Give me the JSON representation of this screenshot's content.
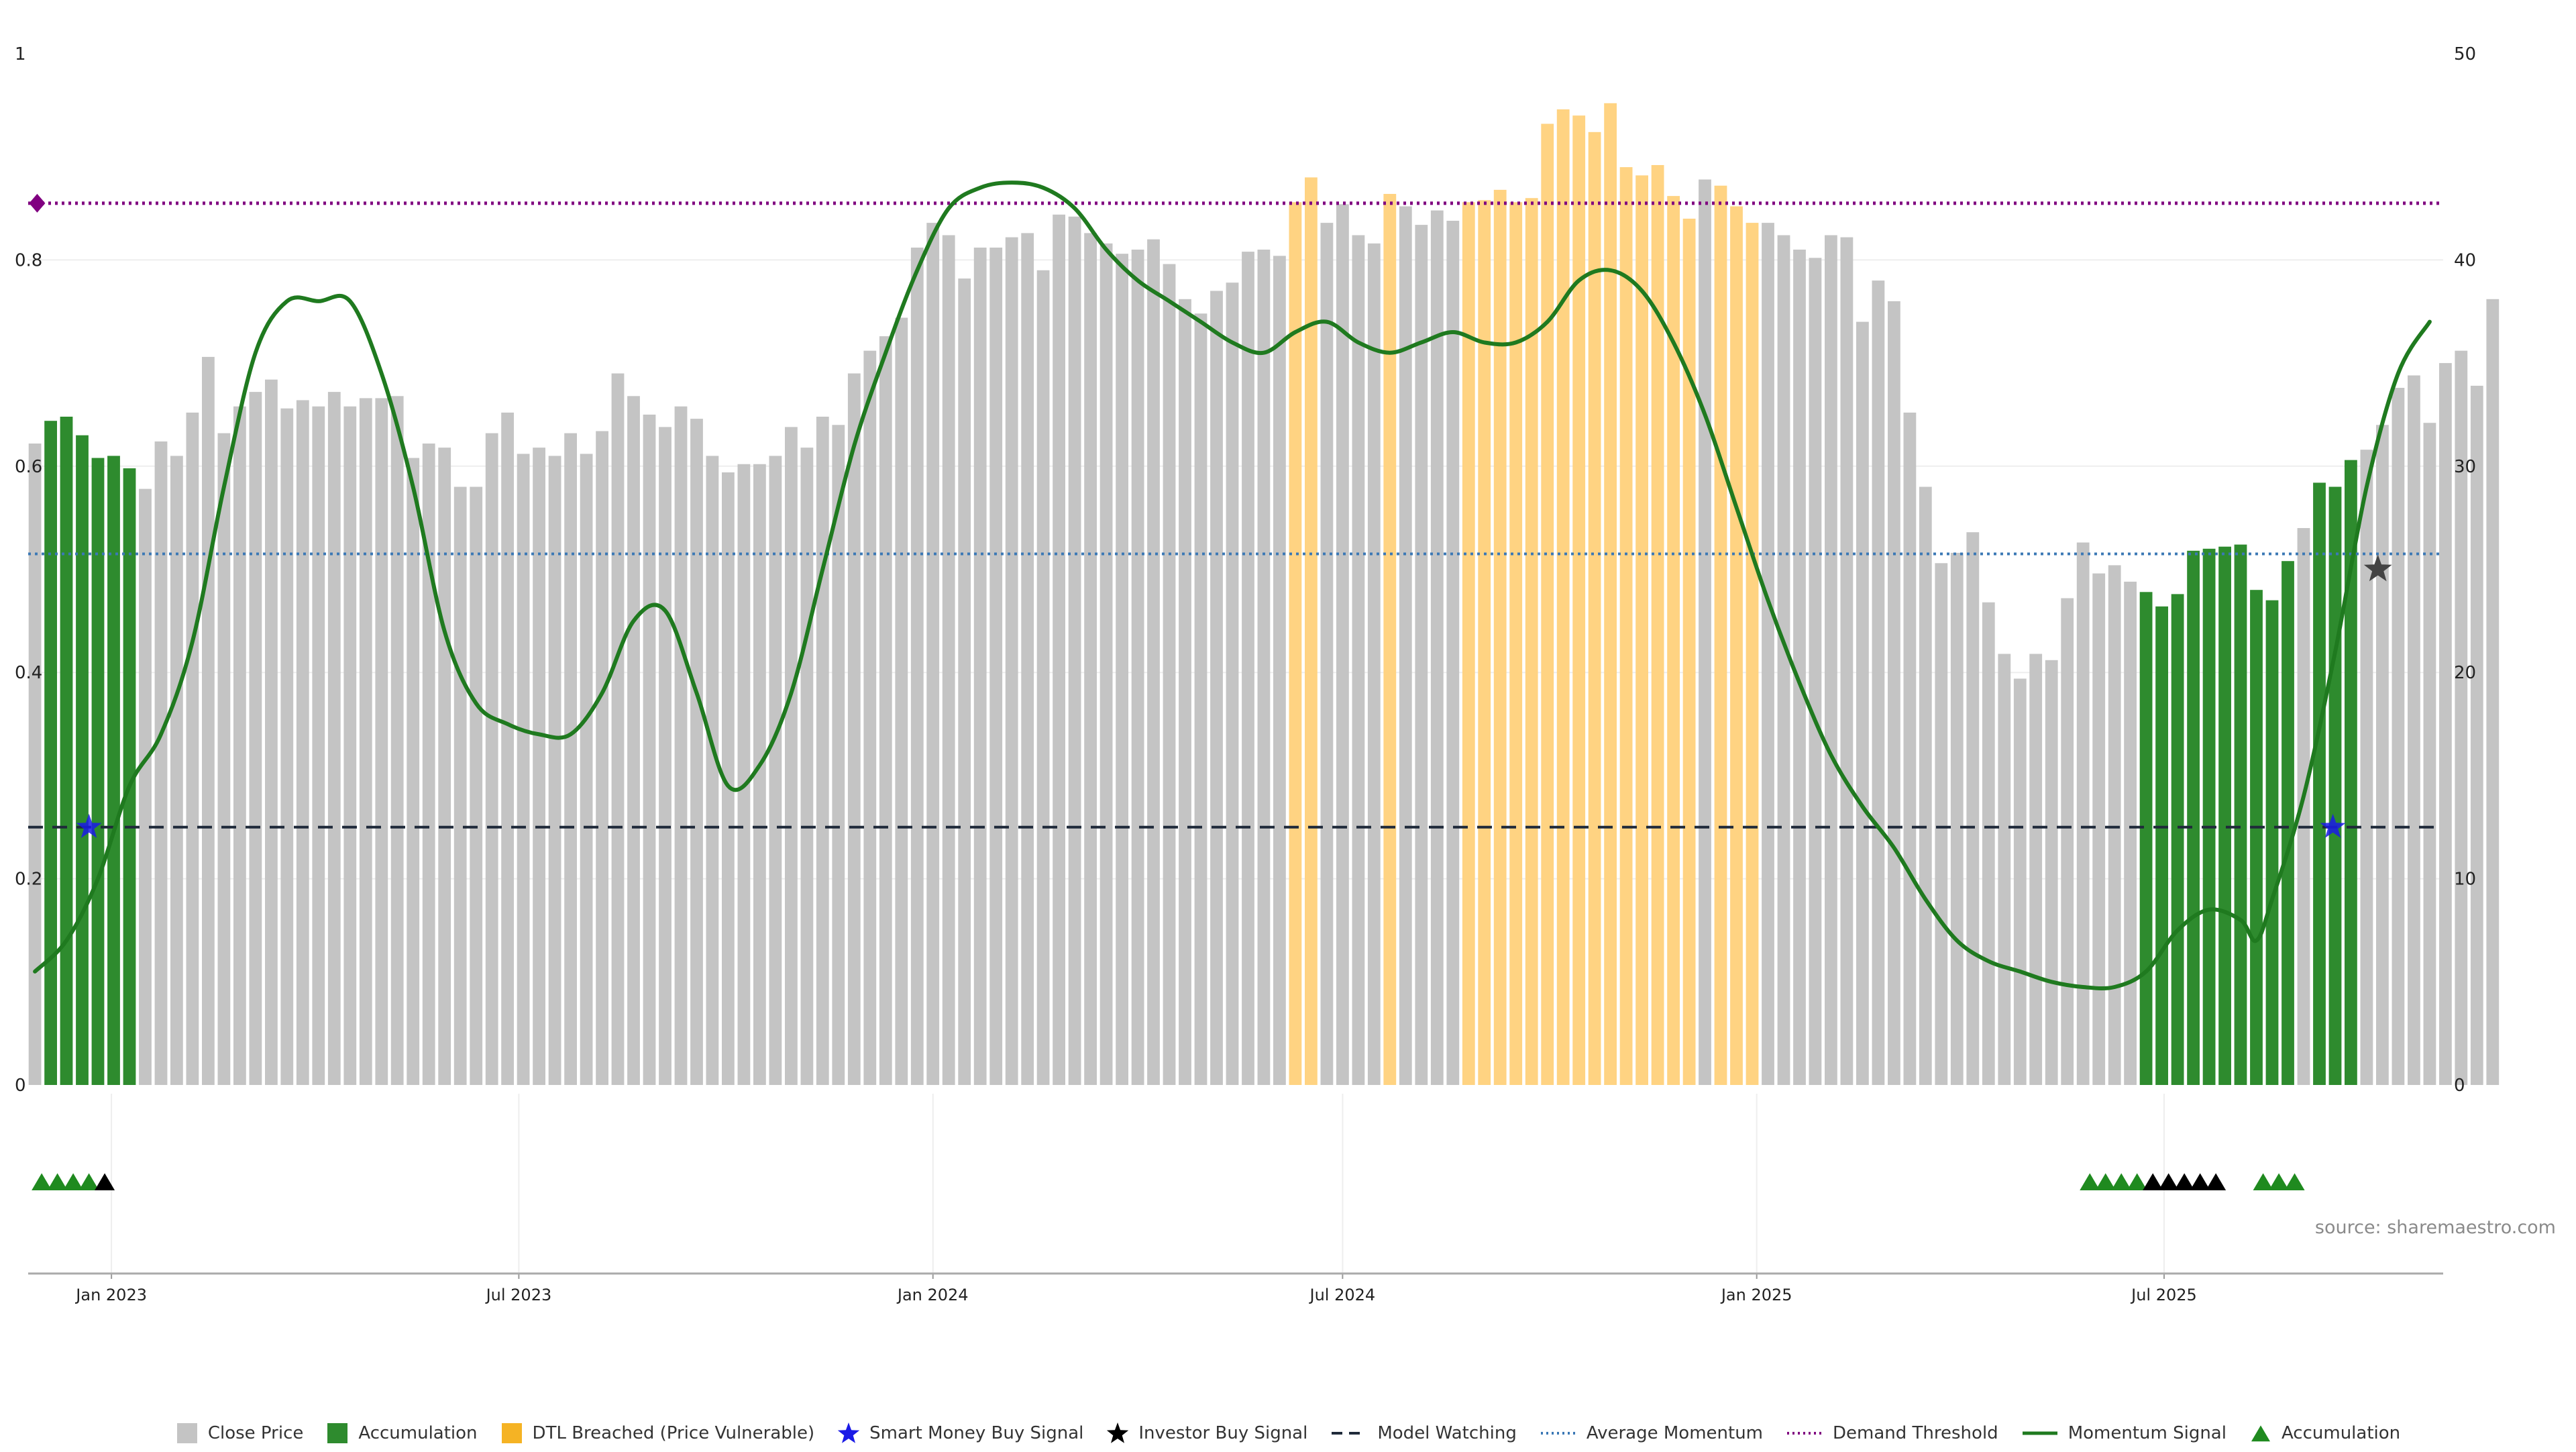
{
  "chart_data": {
    "type": "bar",
    "title": "",
    "xlabel": "",
    "ylabel": "",
    "left_axis": {
      "ylim": [
        0,
        1
      ],
      "ticks": [
        "0",
        "0.2",
        "0.4",
        "0.6",
        "0.8",
        "1"
      ]
    },
    "right_axis": {
      "ylim": [
        0,
        50
      ],
      "ticks": [
        "0",
        "10",
        "20",
        "30",
        "40",
        "50"
      ]
    },
    "x_range": [
      "2022-11-25",
      "2025-11-02"
    ],
    "x_ticks": [
      {
        "date": "2023-01-01",
        "label": "Jan 2023"
      },
      {
        "date": "2023-07-01",
        "label": "Jul 2023"
      },
      {
        "date": "2024-01-01",
        "label": "Jan 2024"
      },
      {
        "date": "2024-07-01",
        "label": "Jul 2024"
      },
      {
        "date": "2025-01-01",
        "label": "Jan 2025"
      },
      {
        "date": "2025-07-01",
        "label": "Jul 2025"
      }
    ],
    "grid": true,
    "bar_start_date": "2022-11-28",
    "bar_interval_days": 7,
    "close_price": [
      31.1,
      32.2,
      32.4,
      31.5,
      30.4,
      30.5,
      29.9,
      28.9,
      31.2,
      30.5,
      32.6,
      35.3,
      31.6,
      32.9,
      33.6,
      34.2,
      32.8,
      33.2,
      32.9,
      33.6,
      32.9,
      33.3,
      33.3,
      33.4,
      30.4,
      31.1,
      30.9,
      29.0,
      29.0,
      31.6,
      32.6,
      30.6,
      30.9,
      30.5,
      31.6,
      30.6,
      31.7,
      34.5,
      33.4,
      32.5,
      31.9,
      32.9,
      32.3,
      30.5,
      29.7,
      30.1,
      30.1,
      30.5,
      31.9,
      30.9,
      32.4,
      32.0,
      34.5,
      35.6,
      36.3,
      37.2,
      40.6,
      41.8,
      41.2,
      39.1,
      40.6,
      40.6,
      41.1,
      41.3,
      39.5,
      42.2,
      42.1,
      41.3,
      40.8,
      40.3,
      40.5,
      41.0,
      39.8,
      38.1,
      37.4,
      38.5,
      38.9,
      40.4,
      40.5,
      40.2,
      42.8,
      44.0,
      41.8,
      42.7,
      41.2,
      40.8,
      43.2,
      42.6,
      41.7,
      42.4,
      41.9,
      42.8,
      42.9,
      43.4,
      42.8,
      43.0,
      46.6,
      47.3,
      47.0,
      46.2,
      47.6,
      44.5,
      44.1,
      44.6,
      43.1,
      42.0,
      43.9,
      43.6,
      42.6,
      41.8,
      41.8,
      41.2,
      40.5,
      40.1,
      41.2,
      41.1,
      37.0,
      39.0,
      38.0,
      32.6,
      29.0,
      25.3,
      25.8,
      26.8,
      23.4,
      20.9,
      19.7,
      20.9,
      20.6,
      23.6,
      26.3,
      24.8,
      25.2,
      24.4,
      23.9,
      23.2,
      23.8,
      25.9,
      26.0,
      26.1,
      26.2,
      24.0,
      23.5,
      25.4,
      27.0,
      29.2,
      29.0,
      30.3,
      30.8,
      32.0,
      33.8,
      34.4,
      32.1,
      35.0,
      35.6,
      33.9,
      38.1
    ],
    "series": [
      {
        "name": "Close Price",
        "kind": "bar",
        "color": "#c4c4c4"
      },
      {
        "name": "Accumulation",
        "kind": "bar",
        "color": "#2e8b2e"
      },
      {
        "name": "DTL Breached (Price Vulnerable)",
        "kind": "bar",
        "color": "#ffd382"
      },
      {
        "name": "Smart Money Buy Signal",
        "kind": "marker",
        "color": "#1a1ae6"
      },
      {
        "name": "Investor Buy Signal",
        "kind": "marker",
        "color": "#000000"
      },
      {
        "name": "Model Watching",
        "kind": "hline",
        "color": "#1f2a3a",
        "value": 0.25
      },
      {
        "name": "Average Momentum",
        "kind": "hline",
        "color": "#3b78b5",
        "value": 0.515
      },
      {
        "name": "Demand Threshold",
        "kind": "hline",
        "color": "#800080",
        "value": 0.855
      },
      {
        "name": "Momentum Signal",
        "kind": "line",
        "color": "#1f7a1f"
      },
      {
        "name": "Accumulation",
        "kind": "marker",
        "color": "#1f8a1f"
      }
    ],
    "accumulation_bar_indices": [
      1,
      2,
      3,
      4,
      5,
      6,
      134,
      135,
      136,
      137,
      138,
      139,
      140,
      141,
      142,
      143,
      145,
      146,
      147
    ],
    "dtl_bar_indices": [
      80,
      81,
      86,
      91,
      92,
      93,
      94,
      95,
      96,
      97,
      98,
      99,
      100,
      101,
      102,
      103,
      104,
      105,
      107,
      108,
      109
    ],
    "momentum_signal": [
      [
        "2022-11-28",
        0.11
      ],
      [
        "2022-12-12",
        0.14
      ],
      [
        "2022-12-26",
        0.2
      ],
      [
        "2023-01-09",
        0.29
      ],
      [
        "2023-01-23",
        0.34
      ],
      [
        "2023-02-06",
        0.43
      ],
      [
        "2023-02-20",
        0.58
      ],
      [
        "2023-03-06",
        0.71
      ],
      [
        "2023-03-20",
        0.76
      ],
      [
        "2023-04-03",
        0.76
      ],
      [
        "2023-04-17",
        0.76
      ],
      [
        "2023-05-01",
        0.69
      ],
      [
        "2023-05-15",
        0.58
      ],
      [
        "2023-05-29",
        0.44
      ],
      [
        "2023-06-12",
        0.37
      ],
      [
        "2023-06-26",
        0.35
      ],
      [
        "2023-07-10",
        0.34
      ],
      [
        "2023-07-24",
        0.34
      ],
      [
        "2023-08-07",
        0.38
      ],
      [
        "2023-08-21",
        0.45
      ],
      [
        "2023-09-04",
        0.46
      ],
      [
        "2023-09-18",
        0.38
      ],
      [
        "2023-10-02",
        0.29
      ],
      [
        "2023-10-16",
        0.31
      ],
      [
        "2023-10-30",
        0.38
      ],
      [
        "2023-11-13",
        0.5
      ],
      [
        "2023-11-27",
        0.62
      ],
      [
        "2023-12-11",
        0.71
      ],
      [
        "2023-12-25",
        0.79
      ],
      [
        "2024-01-08",
        0.85
      ],
      [
        "2024-01-22",
        0.87
      ],
      [
        "2024-02-05",
        0.875
      ],
      [
        "2024-02-19",
        0.87
      ],
      [
        "2024-03-04",
        0.85
      ],
      [
        "2024-03-18",
        0.81
      ],
      [
        "2024-04-01",
        0.78
      ],
      [
        "2024-04-15",
        0.76
      ],
      [
        "2024-04-29",
        0.74
      ],
      [
        "2024-05-13",
        0.72
      ],
      [
        "2024-05-27",
        0.71
      ],
      [
        "2024-06-10",
        0.73
      ],
      [
        "2024-06-24",
        0.74
      ],
      [
        "2024-07-08",
        0.72
      ],
      [
        "2024-07-22",
        0.71
      ],
      [
        "2024-08-05",
        0.72
      ],
      [
        "2024-08-19",
        0.73
      ],
      [
        "2024-09-02",
        0.72
      ],
      [
        "2024-09-16",
        0.72
      ],
      [
        "2024-09-30",
        0.74
      ],
      [
        "2024-10-14",
        0.78
      ],
      [
        "2024-10-28",
        0.79
      ],
      [
        "2024-11-11",
        0.77
      ],
      [
        "2024-11-25",
        0.72
      ],
      [
        "2024-12-09",
        0.65
      ],
      [
        "2024-12-23",
        0.56
      ],
      [
        "2025-01-06",
        0.47
      ],
      [
        "2025-01-20",
        0.39
      ],
      [
        "2025-02-03",
        0.32
      ],
      [
        "2025-02-17",
        0.27
      ],
      [
        "2025-03-03",
        0.23
      ],
      [
        "2025-03-17",
        0.18
      ],
      [
        "2025-03-31",
        0.14
      ],
      [
        "2025-04-14",
        0.12
      ],
      [
        "2025-04-28",
        0.11
      ],
      [
        "2025-05-12",
        0.1
      ],
      [
        "2025-05-26",
        0.095
      ],
      [
        "2025-06-09",
        0.095
      ],
      [
        "2025-06-23",
        0.11
      ],
      [
        "2025-07-07",
        0.15
      ],
      [
        "2025-07-21",
        0.17
      ],
      [
        "2025-08-04",
        0.16
      ],
      [
        "2025-08-11",
        0.14
      ],
      [
        "2025-08-18",
        0.18
      ],
      [
        "2025-09-01",
        0.28
      ],
      [
        "2025-09-15",
        0.42
      ],
      [
        "2025-09-29",
        0.58
      ],
      [
        "2025-10-13",
        0.69
      ],
      [
        "2025-10-27",
        0.74
      ]
    ],
    "smart_money_signals": [
      [
        "2022-12-22",
        0.25
      ],
      [
        "2025-09-14",
        0.25
      ]
    ],
    "investor_signals_chart": [
      [
        "2025-10-04",
        0.5
      ]
    ],
    "demand_threshold_marker": [
      "2022-11-29",
      0.855
    ],
    "strip_markers": [
      {
        "date": "2022-12-01",
        "type": "accumulation"
      },
      {
        "date": "2022-12-08",
        "type": "accumulation"
      },
      {
        "date": "2022-12-15",
        "type": "accumulation"
      },
      {
        "date": "2022-12-22",
        "type": "accumulation"
      },
      {
        "date": "2022-12-29",
        "type": "investor"
      },
      {
        "date": "2025-05-29",
        "type": "accumulation"
      },
      {
        "date": "2025-06-05",
        "type": "accumulation"
      },
      {
        "date": "2025-06-12",
        "type": "accumulation"
      },
      {
        "date": "2025-06-19",
        "type": "accumulation"
      },
      {
        "date": "2025-06-26",
        "type": "investor"
      },
      {
        "date": "2025-07-03",
        "type": "investor"
      },
      {
        "date": "2025-07-10",
        "type": "investor"
      },
      {
        "date": "2025-07-17",
        "type": "investor"
      },
      {
        "date": "2025-07-24",
        "type": "investor"
      },
      {
        "date": "2025-08-14",
        "type": "accumulation"
      },
      {
        "date": "2025-08-21",
        "type": "accumulation"
      },
      {
        "date": "2025-08-28",
        "type": "accumulation"
      }
    ],
    "source_text": "source: sharemaestro.com"
  },
  "legend": {
    "placement": "bottom-center",
    "items": [
      {
        "label": "Close Price",
        "symbol": "square",
        "color": "#c4c4c4"
      },
      {
        "label": "Accumulation",
        "symbol": "square",
        "color": "#2e8b2e"
      },
      {
        "label": "DTL Breached (Price Vulnerable)",
        "symbol": "square",
        "color": "#f5b324"
      },
      {
        "label": "Smart Money Buy Signal",
        "symbol": "star",
        "color": "#1a1ae6"
      },
      {
        "label": "Investor Buy Signal",
        "symbol": "star",
        "color": "#000000"
      },
      {
        "label": "Model Watching",
        "symbol": "dash",
        "color": "#1f2a3a"
      },
      {
        "label": "Average Momentum",
        "symbol": "dot",
        "color": "#3b78b5"
      },
      {
        "label": "Demand Threshold",
        "symbol": "dot",
        "color": "#800080"
      },
      {
        "label": "Momentum Signal",
        "symbol": "line",
        "color": "#1f7a1f"
      },
      {
        "label": "Accumulation",
        "symbol": "triangle",
        "color": "#1f8a1f"
      }
    ]
  }
}
